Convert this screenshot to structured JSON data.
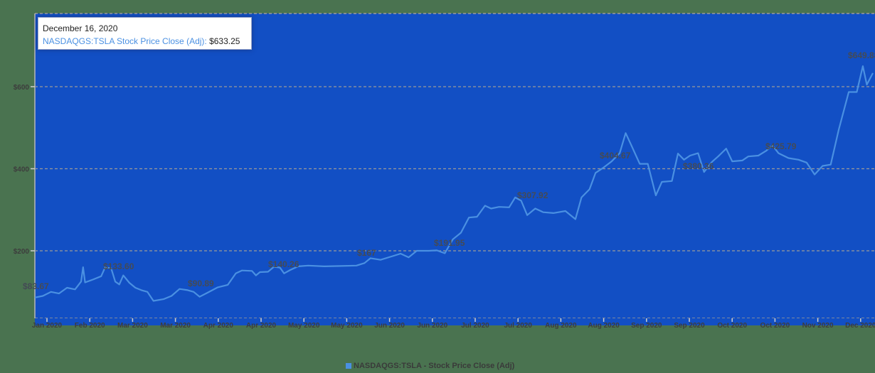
{
  "tooltip": {
    "date": "December 16, 2020",
    "series_label": "NASDAQGS:TSLA Stock Price Close (Adj)",
    "separator": ": ",
    "value": "$633.25"
  },
  "legend": {
    "label": "NASDAQGS:TSLA - Stock Price Close (Adj)",
    "color": "#4a90e2"
  },
  "colors": {
    "page_background": "#4a7350",
    "plot_background": "#124fc4",
    "line": "#4a90e2",
    "gridline": "#9a9a9a",
    "axis_text": "#3d3d3d"
  },
  "chart_data": {
    "type": "line",
    "title": "",
    "xlabel": "",
    "ylabel": "",
    "ylim": [
      35,
      778
    ],
    "grid": true,
    "legend_position": "bottom",
    "y_ticks": [
      {
        "value": 200,
        "label": "$200"
      },
      {
        "value": 400,
        "label": "$400"
      },
      {
        "value": 600,
        "label": "$600"
      }
    ],
    "x_ticks": [
      "Jan 2020",
      "Feb 2020",
      "Mar 2020",
      "Mar 2020",
      "Apr 2020",
      "Apr 2020",
      "May 2020",
      "May 2020",
      "Jun 2020",
      "Jun 2020",
      "Jul 2020",
      "Jul 2020",
      "Aug 2020",
      "Aug 2020",
      "Sep 2020",
      "Sep 2020",
      "Oct 2020",
      "Oct 2020",
      "Nov 2020",
      "Dec 2020"
    ],
    "annotations": [
      {
        "label": "$83.67",
        "x_index": 0
      },
      {
        "label": "$133.60",
        "x_index": 1.7
      },
      {
        "label": "$90.89",
        "x_index": 3.9
      },
      {
        "label": "$140.26",
        "x_index": 6.0
      },
      {
        "label": "$167",
        "x_index": 8.1
      },
      {
        "label": "$191.95",
        "x_index": 10.1
      },
      {
        "label": "$307.92",
        "x_index": 11.8
      },
      {
        "label": "$404.67",
        "x_index": 13.9
      },
      {
        "label": "$380.36",
        "x_index": 15.8
      },
      {
        "label": "$425.79",
        "x_index": 17.8
      },
      {
        "label": "$649.88",
        "x_index": 19.4
      }
    ],
    "series": [
      {
        "name": "NASDAQGS:TSLA - Stock Price Close (Adj)",
        "points": [
          [
            0.0,
            86
          ],
          [
            0.2,
            90
          ],
          [
            0.4,
            100
          ],
          [
            0.6,
            96
          ],
          [
            0.8,
            110
          ],
          [
            1.0,
            106
          ],
          [
            1.15,
            125
          ],
          [
            1.2,
            160
          ],
          [
            1.25,
            123
          ],
          [
            1.45,
            130
          ],
          [
            1.65,
            138
          ],
          [
            1.75,
            160
          ],
          [
            1.9,
            157
          ],
          [
            2.0,
            125
          ],
          [
            2.1,
            118
          ],
          [
            2.2,
            140
          ],
          [
            2.35,
            122
          ],
          [
            2.5,
            110
          ],
          [
            2.65,
            104
          ],
          [
            2.8,
            100
          ],
          [
            2.95,
            78
          ],
          [
            3.2,
            82
          ],
          [
            3.4,
            90
          ],
          [
            3.6,
            107
          ],
          [
            3.8,
            104
          ],
          [
            3.95,
            100
          ],
          [
            4.1,
            88
          ],
          [
            4.3,
            98
          ],
          [
            4.55,
            111
          ],
          [
            4.8,
            117
          ],
          [
            5.0,
            145
          ],
          [
            5.15,
            152
          ],
          [
            5.4,
            151
          ],
          [
            5.5,
            140
          ],
          [
            5.6,
            148
          ],
          [
            5.8,
            149
          ],
          [
            5.95,
            161
          ],
          [
            6.1,
            159
          ],
          [
            6.2,
            145
          ],
          [
            6.35,
            153
          ],
          [
            6.55,
            162
          ],
          [
            6.8,
            164
          ],
          [
            7.2,
            162
          ],
          [
            7.6,
            163
          ],
          [
            8.0,
            164
          ],
          [
            8.2,
            170
          ],
          [
            8.35,
            182
          ],
          [
            8.6,
            178
          ],
          [
            8.9,
            187
          ],
          [
            9.1,
            193
          ],
          [
            9.3,
            184
          ],
          [
            9.5,
            200
          ],
          [
            9.8,
            200
          ],
          [
            10.0,
            201
          ],
          [
            10.2,
            194
          ],
          [
            10.4,
            228
          ],
          [
            10.6,
            244
          ],
          [
            10.8,
            281
          ],
          [
            11.0,
            283
          ],
          [
            11.2,
            310
          ],
          [
            11.35,
            303
          ],
          [
            11.55,
            307
          ],
          [
            11.8,
            306
          ],
          [
            11.95,
            330
          ],
          [
            12.1,
            322
          ],
          [
            12.25,
            287
          ],
          [
            12.45,
            303
          ],
          [
            12.65,
            294
          ],
          [
            12.9,
            292
          ],
          [
            13.2,
            297
          ],
          [
            13.45,
            277
          ],
          [
            13.6,
            330
          ],
          [
            13.8,
            350
          ],
          [
            13.95,
            390
          ],
          [
            14.15,
            403
          ],
          [
            14.35,
            418
          ],
          [
            14.55,
            438
          ],
          [
            14.7,
            487
          ],
          [
            14.85,
            455
          ],
          [
            15.05,
            412
          ],
          [
            15.25,
            412
          ],
          [
            15.45,
            335
          ],
          [
            15.6,
            368
          ],
          [
            15.85,
            370
          ],
          [
            16.0,
            437
          ],
          [
            16.15,
            422
          ],
          [
            16.3,
            432
          ],
          [
            16.5,
            438
          ],
          [
            16.65,
            392
          ],
          [
            16.85,
            417
          ],
          [
            17.0,
            430
          ],
          [
            17.2,
            449
          ],
          [
            17.35,
            418
          ],
          [
            17.6,
            420
          ],
          [
            17.75,
            430
          ],
          [
            18.0,
            432
          ],
          [
            18.2,
            444
          ],
          [
            18.35,
            457
          ],
          [
            18.5,
            438
          ],
          [
            18.75,
            426
          ],
          [
            19.0,
            422
          ],
          [
            19.2,
            415
          ],
          [
            19.4,
            386
          ],
          [
            19.6,
            407
          ],
          [
            19.8,
            410
          ],
          [
            20.0,
            495
          ],
          [
            20.25,
            587
          ],
          [
            20.45,
            587
          ],
          [
            20.6,
            650
          ],
          [
            20.7,
            605
          ],
          [
            20.85,
            633
          ]
        ]
      }
    ]
  }
}
